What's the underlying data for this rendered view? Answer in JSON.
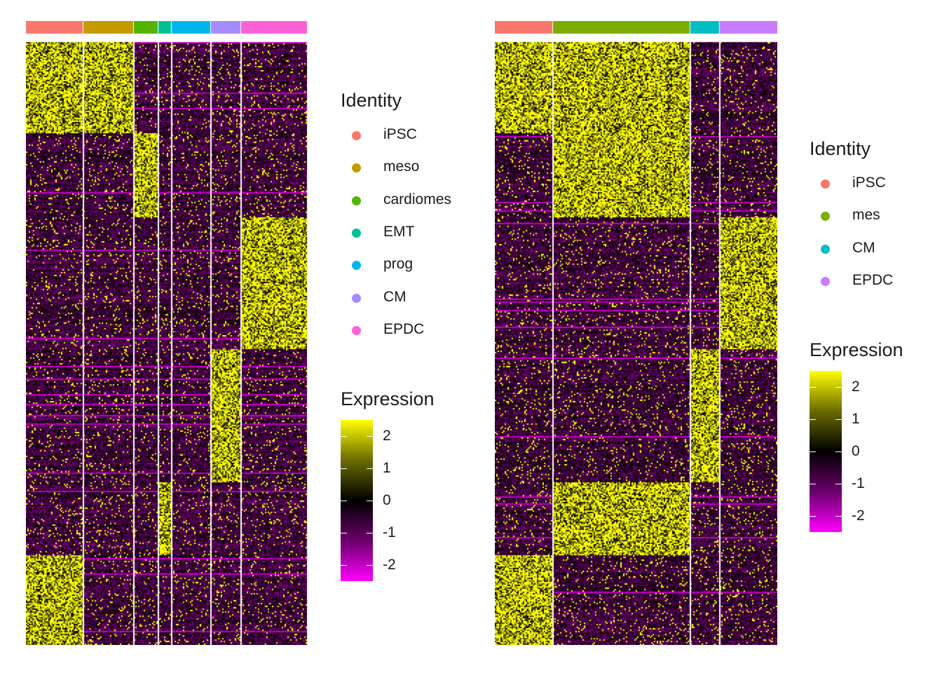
{
  "chart_data": [
    {
      "type": "heatmap",
      "color_scale": {
        "low": "#FF00FF",
        "mid": "#000000",
        "high": "#FFFF00",
        "range": [
          -2.5,
          2.5
        ],
        "ticks": [
          2,
          1,
          0,
          -1,
          -2
        ]
      },
      "groups": [
        {
          "name": "iPSC",
          "color": "#F8766D",
          "cell_fraction": 0.204
        },
        {
          "name": "meso",
          "color": "#C49A00",
          "cell_fraction": 0.179
        },
        {
          "name": "cardiomes",
          "color": "#53B400",
          "cell_fraction": 0.087
        },
        {
          "name": "EMT",
          "color": "#00C094",
          "cell_fraction": 0.045
        },
        {
          "name": "prog",
          "color": "#00B6EB",
          "cell_fraction": 0.139
        },
        {
          "name": "CM",
          "color": "#A58AFF",
          "cell_fraction": 0.109
        },
        {
          "name": "EPDC",
          "color": "#FB61D7",
          "cell_fraction": 0.232
        }
      ],
      "gene_blocks": [
        {
          "row_fraction": 0.15,
          "high_in": [
            "iPSC",
            "meso"
          ]
        },
        {
          "row_fraction": 0.14,
          "high_in": [
            "cardiomes"
          ]
        },
        {
          "row_fraction": 0.22,
          "high_in": [
            "EPDC"
          ]
        },
        {
          "row_fraction": 0.22,
          "high_in": [
            "CM"
          ]
        },
        {
          "row_fraction": 0.12,
          "high_in": [
            "EMT"
          ]
        },
        {
          "row_fraction": 0.15,
          "high_in": [
            "iPSC"
          ]
        }
      ],
      "legend": {
        "title": "Identity",
        "colorbar_title": "Expression",
        "position": "right"
      }
    },
    {
      "type": "heatmap",
      "color_scale": {
        "low": "#FF00FF",
        "mid": "#000000",
        "high": "#FFFF00",
        "range": [
          -2.5,
          2.5
        ],
        "ticks": [
          2,
          1,
          0,
          -1,
          -2
        ]
      },
      "groups": [
        {
          "name": "iPSC",
          "color": "#F8766D",
          "cell_fraction": 0.206
        },
        {
          "name": "mes",
          "color": "#7CAE00",
          "cell_fraction": 0.486
        },
        {
          "name": "CM",
          "color": "#00BFC4",
          "cell_fraction": 0.104
        },
        {
          "name": "EPDC",
          "color": "#C77CFF",
          "cell_fraction": 0.204
        }
      ],
      "gene_blocks": [
        {
          "row_fraction": 0.15,
          "high_in": [
            "iPSC",
            "mes"
          ]
        },
        {
          "row_fraction": 0.14,
          "high_in": [
            "mes"
          ]
        },
        {
          "row_fraction": 0.22,
          "high_in": [
            "EPDC"
          ]
        },
        {
          "row_fraction": 0.22,
          "high_in": [
            "CM"
          ]
        },
        {
          "row_fraction": 0.12,
          "high_in": [
            "mes"
          ]
        },
        {
          "row_fraction": 0.15,
          "high_in": [
            "iPSC"
          ]
        }
      ],
      "legend": {
        "title": "Identity",
        "colorbar_title": "Expression",
        "position": "right"
      }
    }
  ]
}
